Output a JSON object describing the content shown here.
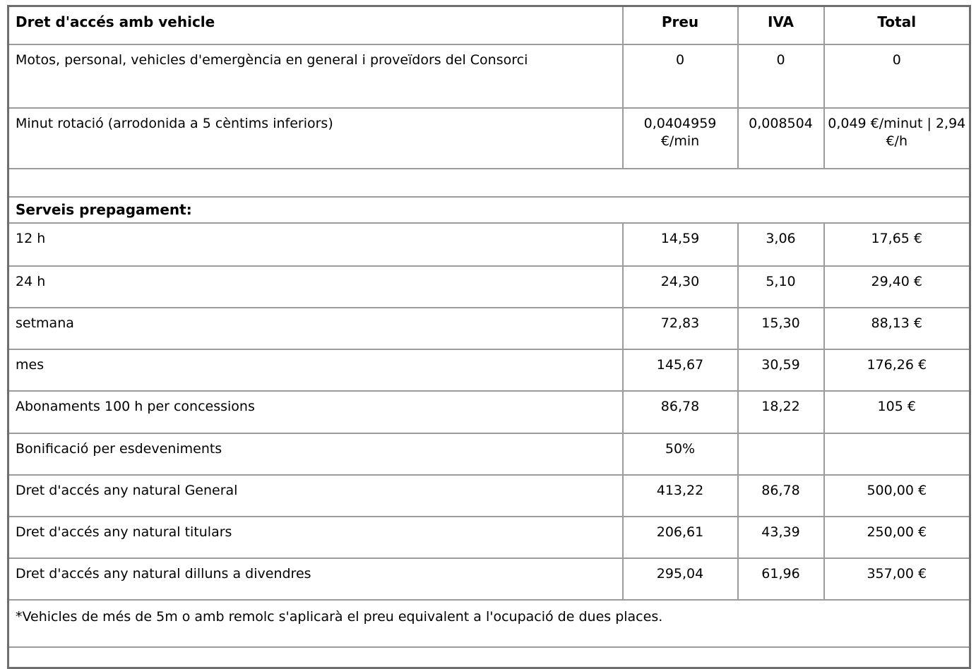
{
  "table": {
    "header": {
      "col1": "Dret d'accés amb vehicle",
      "col2": "Preu",
      "col3": "IVA",
      "col4": "Total"
    },
    "rows": [
      {
        "kind": "data",
        "label": "Motos, personal, vehicles d'emergència en general i proveïdors del Consorci",
        "preu": "0",
        "iva": "0",
        "total": "0"
      },
      {
        "kind": "data",
        "label": "Minut rotació (arrodonida a 5 cèntims inferiors)",
        "preu": "0,0404959 €/min",
        "iva": "0,008504",
        "total": "0,049 €/minut | 2,94 €/h"
      },
      {
        "kind": "spacer",
        "label": ""
      },
      {
        "kind": "section",
        "label": "Serveis prepagament:"
      },
      {
        "kind": "data",
        "label": "12 h",
        "preu": "14,59",
        "iva": "3,06",
        "total": "17,65 €"
      },
      {
        "kind": "data",
        "label": "24 h",
        "preu": "24,30",
        "iva": "5,10",
        "total": "29,40 €"
      },
      {
        "kind": "data",
        "label": "setmana",
        "preu": "72,83",
        "iva": "15,30",
        "total": "88,13 €"
      },
      {
        "kind": "data",
        "label": "mes",
        "preu": "145,67",
        "iva": "30,59",
        "total": "176,26 €"
      },
      {
        "kind": "data",
        "label": "Abonaments 100 h per concessions",
        "preu": "86,78",
        "iva": "18,22",
        "total": "105 €"
      },
      {
        "kind": "data",
        "label": "Bonificació per esdeveniments",
        "preu": "50%",
        "iva": "",
        "total": ""
      },
      {
        "kind": "data",
        "label": "Dret d'accés any natural General",
        "preu": "413,22",
        "iva": "86,78",
        "total": "500,00 €"
      },
      {
        "kind": "data",
        "label": "Dret d'accés any natural titulars",
        "preu": "206,61",
        "iva": "43,39",
        "total": "250,00 €"
      },
      {
        "kind": "data",
        "label": "Dret d'accés any natural dilluns a divendres",
        "preu": "295,04",
        "iva": "61,96",
        "total": "357,00 €"
      },
      {
        "kind": "note",
        "label": "*Vehicles de més de 5m o amb remolc s'aplicarà el preu equivalent a l'ocupació de dues places."
      },
      {
        "kind": "spacer",
        "label": ""
      }
    ]
  }
}
